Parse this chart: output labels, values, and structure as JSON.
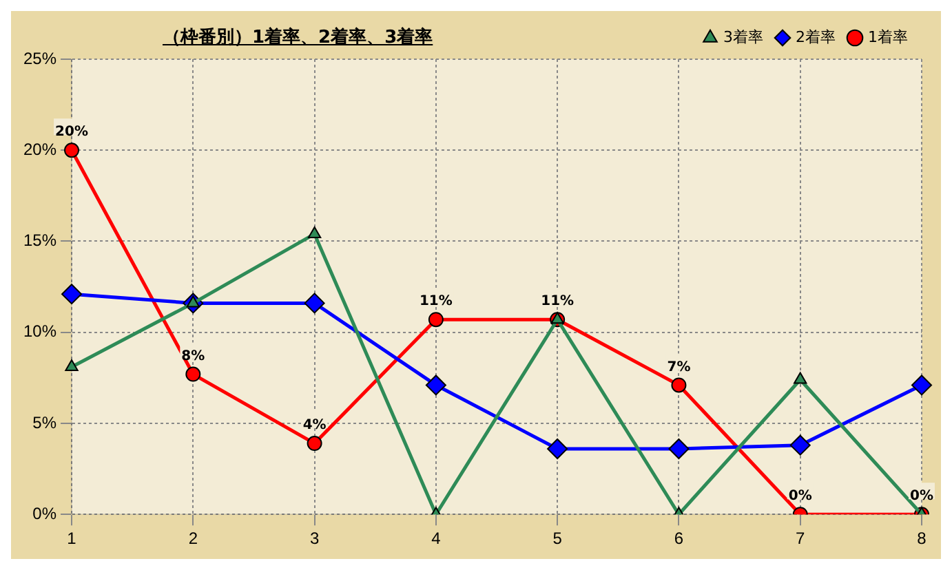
{
  "chart_data": {
    "type": "line",
    "title": "（枠番別）1着率、2着率、3着率",
    "categories": [
      "1",
      "2",
      "3",
      "4",
      "5",
      "6",
      "7",
      "8"
    ],
    "ylim": [
      0,
      25
    ],
    "yticks": [
      {
        "value": 0,
        "label": "0%"
      },
      {
        "value": 5,
        "label": "5%"
      },
      {
        "value": 10,
        "label": "10%"
      },
      {
        "value": 15,
        "label": "15%"
      },
      {
        "value": 20,
        "label": "20%"
      },
      {
        "value": 25,
        "label": "25%"
      }
    ],
    "grid": true,
    "legend": "top right",
    "line_style": "solid",
    "series": [
      {
        "name": "3着率",
        "color": "#2e8b57",
        "marker": "triangle",
        "values": [
          8.1,
          11.6,
          15.4,
          0,
          10.7,
          0,
          7.4,
          0
        ]
      },
      {
        "name": "2着率",
        "color": "#0000ff",
        "marker": "diamond",
        "values": [
          12.1,
          11.6,
          11.6,
          7.1,
          3.6,
          3.6,
          3.8,
          7.1
        ]
      },
      {
        "name": "1着率",
        "color": "#ff0000",
        "marker": "circle",
        "values": [
          20,
          7.7,
          3.9,
          10.7,
          10.7,
          7.1,
          0,
          0
        ],
        "value_labels": [
          "20%",
          "8%",
          "4%",
          "11%",
          "11%",
          "7%",
          "0%",
          "0%"
        ]
      }
    ]
  }
}
